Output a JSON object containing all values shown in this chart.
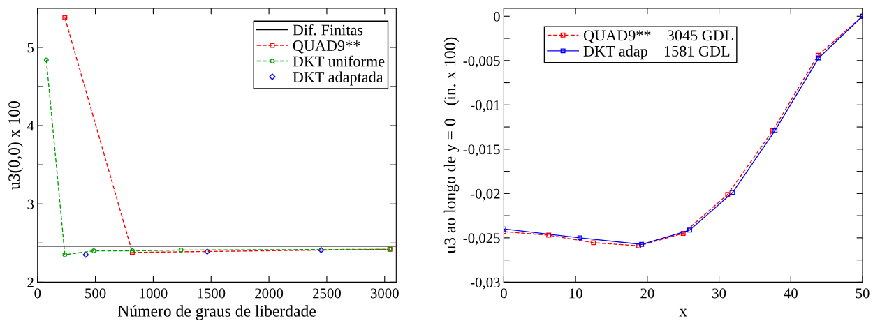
{
  "chart_data": [
    {
      "type": "line",
      "xlabel": "Número de graus de liberdade",
      "ylabel": "u3(0,0) x 100",
      "xlim": [
        0,
        3100
      ],
      "xticks": [
        0,
        500,
        1000,
        1500,
        2000,
        2500,
        3000
      ],
      "ylim": [
        2,
        5.5
      ],
      "yticks": [
        2,
        {
          "value": 2.5,
          "label": null
        },
        3,
        {
          "value": 3.5,
          "label": null
        },
        4,
        {
          "value": 4.5,
          "label": null
        },
        5
      ],
      "grid": false,
      "legend": "top right",
      "series": [
        {
          "name": "Dif. Finitas",
          "color": "#000000",
          "marker": "none",
          "line_style": "solid",
          "x": [
            0,
            3100
          ],
          "values": [
            2.46,
            2.46
          ]
        },
        {
          "name": "QUAD9**",
          "color": "#ff0000",
          "marker": "square",
          "line_style": "dashed",
          "x": [
            236,
            819,
            3045
          ],
          "values": [
            5.38,
            2.38,
            2.42
          ]
        },
        {
          "name": "DKT uniforme",
          "color": "#00a000",
          "marker": "circle",
          "line_style": "dashed",
          "x": [
            76,
            236,
            486,
            819,
            1240,
            3045
          ],
          "values": [
            4.84,
            2.35,
            2.4,
            2.4,
            2.41,
            2.42
          ]
        },
        {
          "name": "DKT adaptada",
          "type": "scatter",
          "color": "#0000ff",
          "marker": "diamond",
          "x": [
            417,
            1466,
            2451
          ],
          "values": [
            2.35,
            2.39,
            2.41
          ]
        }
      ]
    },
    {
      "type": "line",
      "xlabel": "x",
      "ylabel": "u3 ao longo de y = 0   (in. x 100)",
      "xlim": [
        0,
        50
      ],
      "xticks": [
        0,
        10,
        20,
        30,
        40,
        50
      ],
      "ylim": [
        -0.03,
        0.0009
      ],
      "yticks": [
        {
          "value": -0.03,
          "label": "-0,03"
        },
        {
          "value": -0.0275,
          "label": null
        },
        {
          "value": -0.025,
          "label": "-0,025"
        },
        {
          "value": -0.0225,
          "label": null
        },
        {
          "value": -0.02,
          "label": "-0,02"
        },
        {
          "value": -0.0175,
          "label": null
        },
        {
          "value": -0.015,
          "label": "-0,015"
        },
        {
          "value": -0.0125,
          "label": null
        },
        {
          "value": -0.01,
          "label": "-0,01"
        },
        {
          "value": -0.0075,
          "label": null
        },
        {
          "value": -0.005,
          "label": "-0,005"
        },
        {
          "value": -0.0025,
          "label": null
        },
        0
      ],
      "grid": false,
      "legend": "top left",
      "series": [
        {
          "name": "QUAD9**    3045 GDL",
          "color": "#ff0000",
          "marker": "square",
          "line_style": "dashed",
          "x": [
            0,
            6.26,
            12.5,
            18.8,
            25.0,
            31.2,
            37.5,
            43.8,
            50
          ],
          "values": [
            -0.0243,
            -0.0247,
            -0.02555,
            -0.0259,
            -0.02449,
            -0.0201,
            -0.0129,
            -0.0044,
            0
          ]
        },
        {
          "name": "DKT adap    1581 GDL",
          "color": "#0000ff",
          "marker": "square",
          "line_style": "solid",
          "x": [
            0,
            10.6,
            19.2,
            25.9,
            31.9,
            37.8,
            43.9,
            50
          ],
          "values": [
            -0.024,
            -0.025,
            -0.02574,
            -0.02413,
            -0.01988,
            -0.0129,
            -0.0047,
            0
          ]
        }
      ]
    }
  ]
}
